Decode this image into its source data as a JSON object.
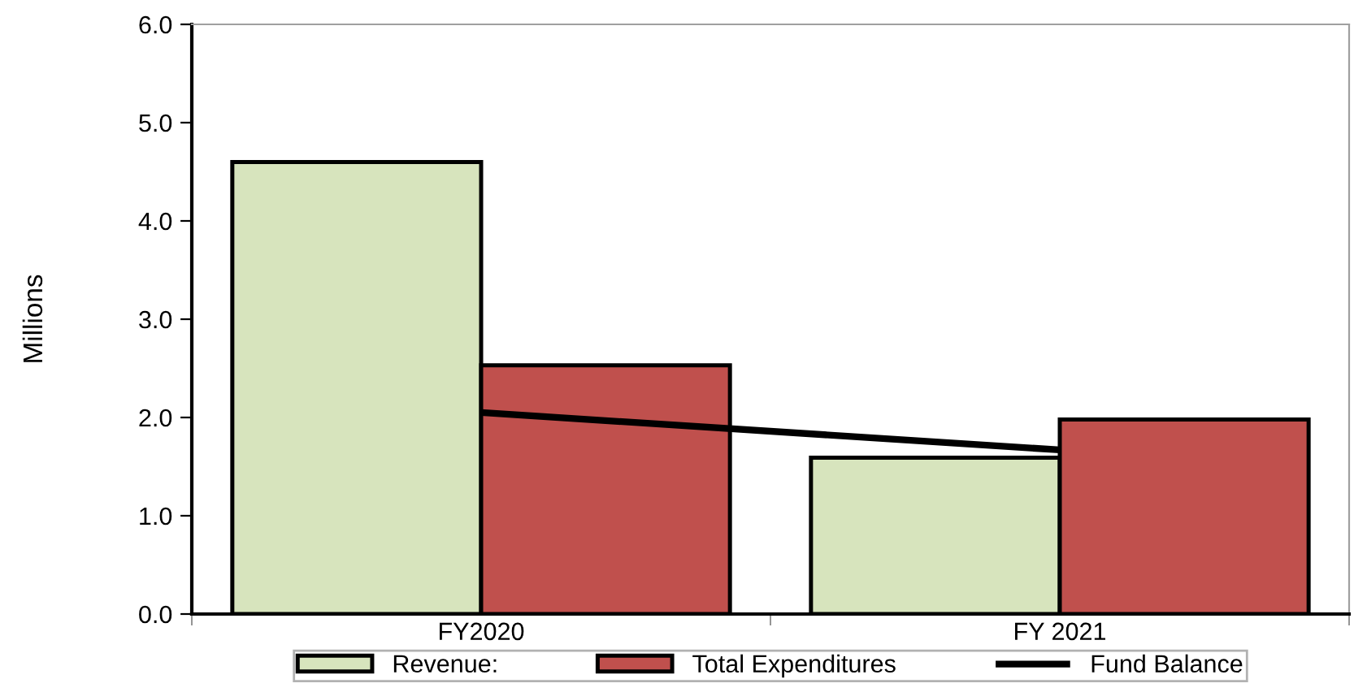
{
  "chart_data": {
    "type": "bar",
    "ylabel": "Millions",
    "categories": [
      "FY2020",
      "FY 2021"
    ],
    "series": [
      {
        "name": "Revenue:",
        "color": "#d7e4bd",
        "values": [
          4.6,
          1.59
        ]
      },
      {
        "name": "Total Expenditures",
        "color": "#c0504d",
        "values": [
          2.53,
          1.98
        ]
      },
      {
        "name": "Fund Balance",
        "type": "line",
        "color": "#000000",
        "values": [
          2.05,
          1.67
        ]
      }
    ],
    "ylim": [
      0,
      6
    ],
    "yticks": [
      {
        "value": 0,
        "label": "0.0"
      },
      {
        "value": 1,
        "label": "1.0"
      },
      {
        "value": 2,
        "label": "2.0"
      },
      {
        "value": 3,
        "label": "3.0"
      },
      {
        "value": 4,
        "label": "4.0"
      },
      {
        "value": 5,
        "label": "5.0"
      },
      {
        "value": 6,
        "label": "6.0"
      }
    ],
    "grid": false,
    "legend": "bottom"
  }
}
